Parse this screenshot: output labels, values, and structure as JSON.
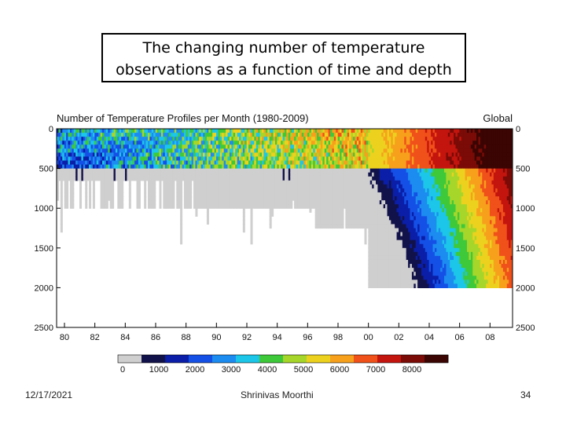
{
  "slide": {
    "title_line1": "The changing number of temperature",
    "title_line2": "observations as a function of time and depth",
    "date": "12/17/2021",
    "author": "Shrinivas Moorthi",
    "page_number": "34"
  },
  "chart_data": {
    "type": "heatmap",
    "title": "Number of Temperature Profiles per Month (1980-2009)",
    "region_label": "Global",
    "x_ticks": [
      "80",
      "82",
      "84",
      "86",
      "88",
      "90",
      "92",
      "94",
      "96",
      "98",
      "00",
      "02",
      "04",
      "06",
      "08"
    ],
    "x_range": [
      1980,
      2010
    ],
    "y_ticks": [
      "0",
      "500",
      "1000",
      "1500",
      "2000",
      "2500"
    ],
    "y_range_m": [
      0,
      2500
    ],
    "colorbar_ticks": [
      "0",
      "1000",
      "2000",
      "3000",
      "4000",
      "5000",
      "6000",
      "7000",
      "8000"
    ],
    "colorbar_range": [
      0,
      9000
    ],
    "colorbar_colors": [
      "#cfcfcf",
      "#12124a",
      "#0a1ea8",
      "#1550e6",
      "#1c8cf0",
      "#1cc6e8",
      "#3ec93a",
      "#a6d62a",
      "#ecd21e",
      "#f7a01c",
      "#f0501a",
      "#c4140e",
      "#7a0b06",
      "#3a0503"
    ],
    "series_approx": [
      {
        "year_range": "1980-1990",
        "profiles_0_500m": 4500,
        "profiles_500_1000m": 900,
        "max_depth_m": 1800
      },
      {
        "year_range": "1990-1998",
        "profiles_0_500m": 5200,
        "profiles_500_1000m": 1200,
        "max_depth_m": 1800
      },
      {
        "year_range": "1998-2002",
        "profiles_0_500m": 6000,
        "profiles_500_1000m": 1800,
        "max_depth_m": 2000
      },
      {
        "year_range": "2002-2005",
        "profiles_0_500m": 7500,
        "profiles_500_1000m": 5000,
        "max_depth_m": 2000
      },
      {
        "year_range": "2005-2009",
        "profiles_0_500m": 8800,
        "profiles_500_1000m": 8300,
        "max_depth_m": 2000
      }
    ]
  }
}
